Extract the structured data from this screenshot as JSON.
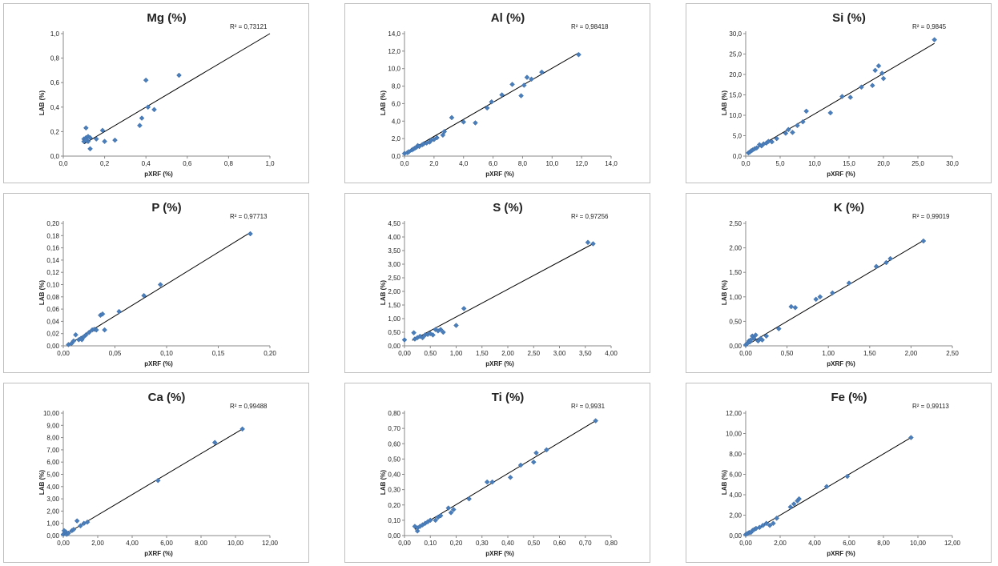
{
  "colors": {
    "marker": "#4a7ebb",
    "line": "#000000",
    "axis": "#888888"
  },
  "chart_data": [
    {
      "type": "scatter",
      "title": "Mg (%)",
      "xlabel": "pXRF (%)",
      "ylabel": "LAB (%)",
      "r2": "R² = 0,73121",
      "xlim": [
        0,
        1
      ],
      "ylim": [
        0,
        1
      ],
      "xticks": [
        "0,0",
        "0,2",
        "0,4",
        "0,6",
        "0,8",
        "1,0"
      ],
      "yticks": [
        "0,0",
        "0,2",
        "0,4",
        "0,6",
        "0,8",
        "1,0"
      ],
      "trend": [
        [
          0.1,
          0.1
        ],
        [
          1.0,
          1.0
        ]
      ],
      "x": [
        0.1,
        0.11,
        0.12,
        0.1,
        0.11,
        0.12,
        0.13,
        0.16,
        0.19,
        0.2,
        0.11,
        0.13,
        0.25,
        0.37,
        0.38,
        0.4,
        0.41,
        0.44,
        0.56
      ],
      "y": [
        0.14,
        0.15,
        0.16,
        0.12,
        0.23,
        0.12,
        0.06,
        0.14,
        0.21,
        0.12,
        0.13,
        0.15,
        0.13,
        0.25,
        0.31,
        0.62,
        0.4,
        0.38,
        0.66
      ]
    },
    {
      "type": "scatter",
      "title": "Al (%)",
      "xlabel": "pXRF (%)",
      "ylabel": "LAB (%)",
      "r2": "R² = 0,98418",
      "xlim": [
        0,
        14
      ],
      "ylim": [
        0,
        14
      ],
      "xticks": [
        "0,0",
        "2,0",
        "4,0",
        "6,0",
        "8,0",
        "10,0",
        "12,0",
        "14,0"
      ],
      "yticks": [
        "0,0",
        "2,0",
        "4,0",
        "6,0",
        "8,0",
        "10,0",
        "12,0",
        "14,0"
      ],
      "trend": [
        [
          0.0,
          0.3
        ],
        [
          11.8,
          11.8
        ]
      ],
      "x": [
        0.0,
        0.2,
        0.3,
        0.5,
        0.6,
        0.7,
        0.8,
        0.9,
        1.0,
        1.2,
        1.3,
        1.5,
        1.7,
        1.8,
        2.0,
        2.2,
        2.6,
        2.7,
        3.2,
        4.0,
        4.8,
        5.6,
        5.9,
        6.6,
        7.3,
        7.9,
        8.1,
        8.3,
        8.6,
        9.3,
        11.8
      ],
      "y": [
        0.3,
        0.4,
        0.5,
        0.7,
        0.8,
        0.9,
        1.0,
        1.2,
        1.1,
        1.3,
        1.4,
        1.5,
        1.6,
        1.8,
        1.9,
        2.1,
        2.4,
        2.8,
        4.4,
        3.9,
        3.8,
        5.5,
        6.2,
        7.0,
        8.2,
        6.9,
        8.1,
        9.0,
        8.8,
        9.6,
        11.6
      ]
    },
    {
      "type": "scatter",
      "title": "Si (%)",
      "xlabel": "pXRF (%)",
      "ylabel": "LAB (%)",
      "r2": "R² = 0,9845",
      "xlim": [
        0,
        30
      ],
      "ylim": [
        0,
        30
      ],
      "xticks": [
        "0,0",
        "5,0",
        "10,0",
        "15,0",
        "20,0",
        "25,0",
        "30,0"
      ],
      "yticks": [
        "0,0",
        "5,0",
        "10,0",
        "15,0",
        "20,0",
        "25,0",
        "30,0"
      ],
      "trend": [
        [
          0.3,
          0.7
        ],
        [
          27.4,
          27.6
        ]
      ],
      "x": [
        0.4,
        0.6,
        0.8,
        1.0,
        1.3,
        1.6,
        2.0,
        2.3,
        2.6,
        3.0,
        3.3,
        3.8,
        4.5,
        5.8,
        6.2,
        6.8,
        7.5,
        8.3,
        8.8,
        12.3,
        14.0,
        15.2,
        16.8,
        18.4,
        18.8,
        19.3,
        19.8,
        20.0,
        27.4
      ],
      "y": [
        0.8,
        1.0,
        1.3,
        1.5,
        1.8,
        2.0,
        2.8,
        2.5,
        3.0,
        3.2,
        3.6,
        3.5,
        4.3,
        5.6,
        6.5,
        5.8,
        7.5,
        8.4,
        11.0,
        10.6,
        14.6,
        14.4,
        16.9,
        17.3,
        21.0,
        22.1,
        20.3,
        19.0,
        28.5
      ]
    },
    {
      "type": "scatter",
      "title": "P (%)",
      "xlabel": "pXRF (%)",
      "ylabel": "LAB (%)",
      "r2": "R² = 0,97713",
      "xlim": [
        0,
        0.2
      ],
      "ylim": [
        0,
        0.2
      ],
      "xticks": [
        "0,00",
        "0,05",
        "0,10",
        "0,15",
        "0,20"
      ],
      "yticks": [
        "0,00",
        "0,02",
        "0,04",
        "0,06",
        "0,08",
        "0,10",
        "0,12",
        "0,14",
        "0,16",
        "0,18",
        "0,20"
      ],
      "trend": [
        [
          0.005,
          0.002
        ],
        [
          0.181,
          0.185
        ]
      ],
      "x": [
        0.005,
        0.008,
        0.01,
        0.012,
        0.015,
        0.017,
        0.018,
        0.02,
        0.022,
        0.025,
        0.028,
        0.03,
        0.032,
        0.036,
        0.038,
        0.04,
        0.054,
        0.078,
        0.094,
        0.181
      ],
      "y": [
        0.002,
        0.004,
        0.008,
        0.018,
        0.01,
        0.012,
        0.01,
        0.015,
        0.018,
        0.022,
        0.026,
        0.027,
        0.026,
        0.05,
        0.052,
        0.026,
        0.056,
        0.082,
        0.1,
        0.183
      ]
    },
    {
      "type": "scatter",
      "title": "S (%)",
      "xlabel": "pXRF (%)",
      "ylabel": "LAB (%)",
      "r2": "R² = 0,97256",
      "xlim": [
        0,
        4
      ],
      "ylim": [
        0,
        4.5
      ],
      "xticks": [
        "0,00",
        "0,50",
        "1,00",
        "1,50",
        "2,00",
        "2,50",
        "3,00",
        "3,50",
        "4,00"
      ],
      "yticks": [
        "0,00",
        "0,50",
        "1,00",
        "1,50",
        "2,00",
        "2,50",
        "3,00",
        "3,50",
        "4,00",
        "4,50"
      ],
      "trend": [
        [
          0.15,
          0.2
        ],
        [
          3.65,
          3.75
        ]
      ],
      "x": [
        0.0,
        0.18,
        0.2,
        0.25,
        0.3,
        0.35,
        0.4,
        0.45,
        0.5,
        0.55,
        0.6,
        0.65,
        0.7,
        0.75,
        1.0,
        1.15,
        3.55,
        3.65
      ],
      "y": [
        0.22,
        0.48,
        0.25,
        0.3,
        0.35,
        0.3,
        0.4,
        0.42,
        0.45,
        0.4,
        0.6,
        0.55,
        0.6,
        0.5,
        0.75,
        1.37,
        3.8,
        3.75
      ]
    },
    {
      "type": "scatter",
      "title": "K (%)",
      "xlabel": "pXRF (%)",
      "ylabel": "LAB (%)",
      "r2": "R² = 0,99019",
      "xlim": [
        0,
        2.5
      ],
      "ylim": [
        0,
        2.5
      ],
      "xticks": [
        "0,00",
        "0,50",
        "1,00",
        "1,50",
        "2,00",
        "2,50"
      ],
      "yticks": [
        "0,00",
        "0,50",
        "1,00",
        "1,50",
        "2,00",
        "2,50"
      ],
      "trend": [
        [
          0.0,
          0.0
        ],
        [
          2.15,
          2.15
        ]
      ],
      "x": [
        0.0,
        0.02,
        0.04,
        0.05,
        0.06,
        0.08,
        0.1,
        0.12,
        0.15,
        0.18,
        0.2,
        0.25,
        0.4,
        0.55,
        0.6,
        0.85,
        0.9,
        1.05,
        1.25,
        1.58,
        1.7,
        1.75,
        2.15
      ],
      "y": [
        0.02,
        0.05,
        0.1,
        0.08,
        0.12,
        0.2,
        0.15,
        0.22,
        0.1,
        0.15,
        0.12,
        0.2,
        0.35,
        0.8,
        0.78,
        0.95,
        1.0,
        1.08,
        1.28,
        1.62,
        1.7,
        1.78,
        2.14
      ]
    },
    {
      "type": "scatter",
      "title": "Ca (%)",
      "xlabel": "pXRF (%)",
      "ylabel": "LAB (%)",
      "r2": "R² = 0,99488",
      "xlim": [
        0,
        12
      ],
      "ylim": [
        0,
        10
      ],
      "xticks": [
        "0,00",
        "2,00",
        "4,00",
        "6,00",
        "8,00",
        "10,00",
        "12,00"
      ],
      "yticks": [
        "0,00",
        "1,00",
        "2,00",
        "3,00",
        "4,00",
        "5,00",
        "6,00",
        "7,00",
        "8,00",
        "9,00",
        "10,00"
      ],
      "trend": [
        [
          0.0,
          0.0
        ],
        [
          10.4,
          8.7
        ]
      ],
      "x": [
        0.0,
        0.05,
        0.1,
        0.15,
        0.2,
        0.3,
        0.5,
        0.6,
        0.8,
        1.0,
        1.2,
        1.4,
        5.5,
        8.8,
        10.4
      ],
      "y": [
        0.1,
        0.4,
        0.2,
        0.3,
        0.1,
        0.2,
        0.4,
        0.5,
        1.2,
        0.8,
        1.0,
        1.1,
        4.5,
        7.6,
        8.7
      ]
    },
    {
      "type": "scatter",
      "title": "Ti (%)",
      "xlabel": "pXRF (%)",
      "ylabel": "LAB (%)",
      "r2": "R² = 0,9931",
      "xlim": [
        0,
        0.8
      ],
      "ylim": [
        0,
        0.8
      ],
      "xticks": [
        "0,00",
        "0,10",
        "0,20",
        "0,30",
        "0,40",
        "0,50",
        "0,60",
        "0,70",
        "0,80"
      ],
      "yticks": [
        "0,00",
        "0,10",
        "0,20",
        "0,30",
        "0,40",
        "0,50",
        "0,60",
        "0,70",
        "0,80"
      ],
      "trend": [
        [
          0.04,
          0.04
        ],
        [
          0.74,
          0.75
        ]
      ],
      "x": [
        0.04,
        0.05,
        0.05,
        0.06,
        0.07,
        0.08,
        0.09,
        0.1,
        0.12,
        0.13,
        0.14,
        0.17,
        0.18,
        0.19,
        0.25,
        0.32,
        0.34,
        0.41,
        0.45,
        0.5,
        0.51,
        0.55,
        0.74
      ],
      "y": [
        0.06,
        0.03,
        0.05,
        0.06,
        0.07,
        0.08,
        0.09,
        0.1,
        0.1,
        0.12,
        0.13,
        0.18,
        0.15,
        0.17,
        0.24,
        0.35,
        0.35,
        0.38,
        0.46,
        0.48,
        0.54,
        0.56,
        0.75
      ]
    },
    {
      "type": "scatter",
      "title": "Fe (%)",
      "xlabel": "pXRF (%)",
      "ylabel": "LAB (%)",
      "r2": "R² = 0,99113",
      "xlim": [
        0,
        12
      ],
      "ylim": [
        0,
        12
      ],
      "xticks": [
        "0,00",
        "2,00",
        "4,00",
        "6,00",
        "8,00",
        "10,00",
        "12,00"
      ],
      "yticks": [
        "0,00",
        "2,00",
        "4,00",
        "6,00",
        "8,00",
        "10,00",
        "12,00"
      ],
      "trend": [
        [
          0.0,
          0.0
        ],
        [
          9.6,
          9.6
        ]
      ],
      "x": [
        0.0,
        0.1,
        0.2,
        0.3,
        0.4,
        0.5,
        0.6,
        0.8,
        1.0,
        1.2,
        1.4,
        1.6,
        1.8,
        2.6,
        2.8,
        3.0,
        3.1,
        4.7,
        5.9,
        9.6
      ],
      "y": [
        0.1,
        0.2,
        0.3,
        0.3,
        0.5,
        0.6,
        0.7,
        0.8,
        1.0,
        1.2,
        1.0,
        1.2,
        1.7,
        2.8,
        3.1,
        3.4,
        3.6,
        4.8,
        5.8,
        9.6
      ]
    }
  ]
}
